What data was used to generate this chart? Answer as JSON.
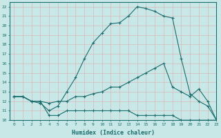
{
  "xlabel": "Humidex (Indice chaleur)",
  "ylabel": "",
  "bg_color": "#c8e8e8",
  "grid_color": "#d8b8b8",
  "line_color": "#1a6b6b",
  "xlim": [
    -0.5,
    23
  ],
  "ylim": [
    10,
    22.5
  ],
  "xticks": [
    0,
    1,
    2,
    3,
    4,
    5,
    6,
    7,
    8,
    9,
    10,
    11,
    12,
    13,
    14,
    15,
    16,
    17,
    18,
    19,
    20,
    21,
    22,
    23
  ],
  "yticks": [
    10,
    11,
    12,
    13,
    14,
    15,
    16,
    17,
    18,
    19,
    20,
    21,
    22
  ],
  "line1_x": [
    0,
    1,
    2,
    3,
    4,
    5,
    6,
    7,
    8,
    9,
    10,
    11,
    12,
    13,
    14,
    15,
    16,
    17,
    18,
    19,
    20,
    21,
    22,
    23
  ],
  "line1_y": [
    12.5,
    12.5,
    12.0,
    11.8,
    11.0,
    11.5,
    13.0,
    14.5,
    16.5,
    18.2,
    19.2,
    20.2,
    20.3,
    21.0,
    22.0,
    21.8,
    21.5,
    21.0,
    20.8,
    16.5,
    12.8,
    12.0,
    11.5,
    10.0
  ],
  "line2_x": [
    0,
    1,
    2,
    3,
    4,
    5,
    6,
    7,
    8,
    9,
    10,
    11,
    12,
    13,
    14,
    15,
    16,
    17,
    18,
    19,
    20,
    21,
    22,
    23
  ],
  "line2_y": [
    12.5,
    12.5,
    12.0,
    12.0,
    10.5,
    10.5,
    11.0,
    11.0,
    11.0,
    11.0,
    11.0,
    11.0,
    11.0,
    11.0,
    10.5,
    10.5,
    10.5,
    10.5,
    10.5,
    10.0,
    10.0,
    10.0,
    10.0,
    10.0
  ],
  "line3_x": [
    0,
    1,
    2,
    3,
    4,
    5,
    6,
    7,
    8,
    9,
    10,
    11,
    12,
    13,
    14,
    15,
    16,
    17,
    18,
    19,
    20,
    21,
    22,
    23
  ],
  "line3_y": [
    12.5,
    12.5,
    12.0,
    12.0,
    11.8,
    12.0,
    12.0,
    12.5,
    12.5,
    12.8,
    13.0,
    13.5,
    13.5,
    14.0,
    14.5,
    15.0,
    15.5,
    16.0,
    13.5,
    13.0,
    12.5,
    13.3,
    12.0,
    10.0
  ]
}
